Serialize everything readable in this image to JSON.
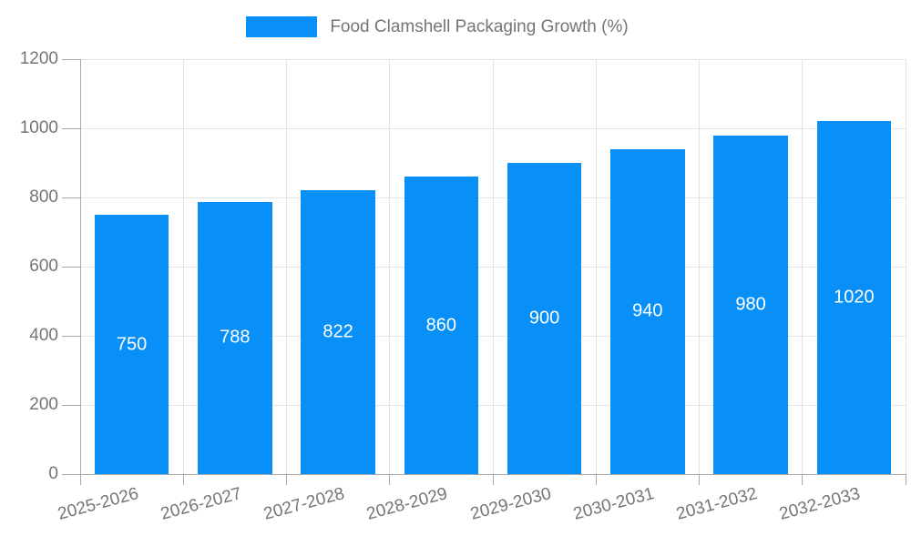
{
  "chart_data": {
    "type": "bar",
    "title": "Food Clamshell Packaging Growth (%)",
    "categories": [
      "2025-2026",
      "2026-2027",
      "2027-2028",
      "2028-2029",
      "2029-2030",
      "2030-2031",
      "2031-2032",
      "2032-2033"
    ],
    "values": [
      750,
      788,
      822,
      860,
      900,
      940,
      980,
      1020
    ],
    "xlabel": "",
    "ylabel": "",
    "ylim": [
      0,
      1200
    ],
    "yticks": [
      0,
      200,
      400,
      600,
      800,
      1000,
      1200
    ],
    "grid": true,
    "legend_position": "top-center",
    "x_label_rotation_deg": -15,
    "colors": {
      "bar": "#0990f8",
      "bar_value_text": "#ffffff",
      "grid": "#e3e3e3",
      "axis": "#a8a8a8",
      "tick_text": "#757575",
      "legend_text": "#757575",
      "background": "#ffffff"
    }
  }
}
